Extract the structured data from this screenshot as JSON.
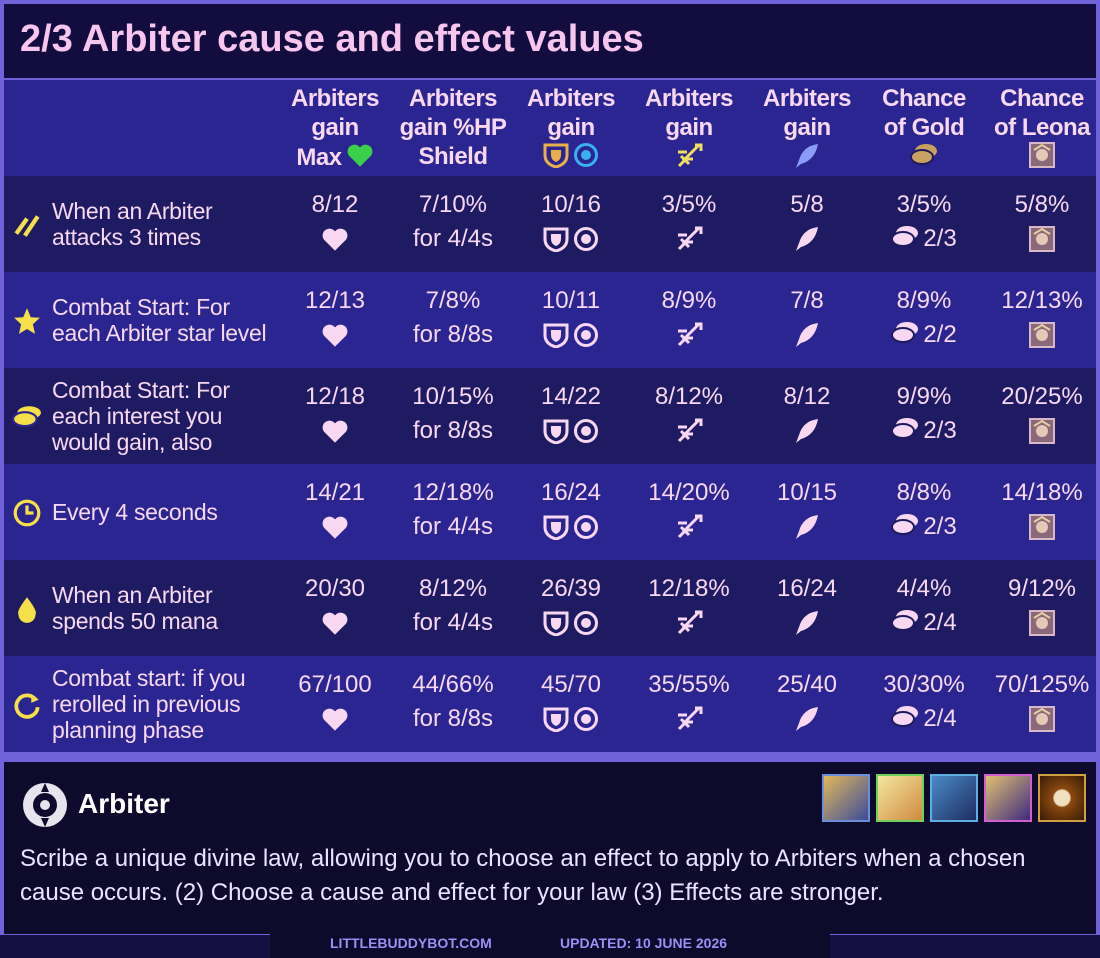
{
  "title": "2/3 Arbiter cause and effect values",
  "table": {
    "headers": [
      [
        "Arbiters",
        "gain",
        "Max"
      ],
      [
        "Arbiters",
        "gain  %HP",
        "Shield"
      ],
      [
        "Arbiters",
        "gain"
      ],
      [
        "Arbiters",
        "gain"
      ],
      [
        "Arbiters",
        "gain"
      ],
      [
        "Chance",
        "of Gold"
      ],
      [
        "Chance",
        "of Leona"
      ]
    ],
    "rows": [
      {
        "cause": "When an Arbiter attacks 3 times",
        "cells": [
          "8/12",
          "7/10%",
          "10/16",
          "3/5%",
          "5/8",
          "3/5%",
          "5/8%"
        ],
        "duration": "for 4/4s",
        "gold": "2/3"
      },
      {
        "cause": "Combat Start: For each Arbiter star level",
        "cells": [
          "12/13",
          "7/8%",
          "10/11",
          "8/9%",
          "7/8",
          "8/9%",
          "12/13%"
        ],
        "duration": "for 8/8s",
        "gold": "2/2"
      },
      {
        "cause": "Combat Start: For each interest you would gain, also",
        "cells": [
          "12/18",
          "10/15%",
          "14/22",
          "8/12%",
          "8/12",
          "9/9%",
          "20/25%"
        ],
        "duration": "for 8/8s",
        "gold": "2/3"
      },
      {
        "cause": "Every 4 seconds",
        "cells": [
          "14/21",
          "12/18%",
          "16/24",
          "14/20%",
          "10/15",
          "8/8%",
          "14/18%"
        ],
        "duration": "for 4/4s",
        "gold": "2/3"
      },
      {
        "cause": "When an Arbiter spends 50 mana",
        "cells": [
          "20/30",
          "8/12%",
          "26/39",
          "12/18%",
          "16/24",
          "4/4%",
          "9/12%"
        ],
        "duration": "for 4/4s",
        "gold": "2/4"
      },
      {
        "cause": "Combat start: if you rerolled in previous planning phase",
        "cells": [
          "67/100",
          "44/66%",
          "45/70",
          "35/55%",
          "25/40",
          "30/30%",
          "70/125%"
        ],
        "duration": "for 8/8s",
        "gold": "2/4"
      }
    ]
  },
  "trait": {
    "name": "Arbiter",
    "description": "Scribe a unique divine law, allowing you to choose an effect to apply to Arbiters when a chosen cause occurs.  (2) Choose a cause and effect for your law  (3) Effects are stronger."
  },
  "footer": {
    "site": "LITTLEBUDDYBOT.COM",
    "updated": "UPDATED: 10 JUNE 2026"
  }
}
